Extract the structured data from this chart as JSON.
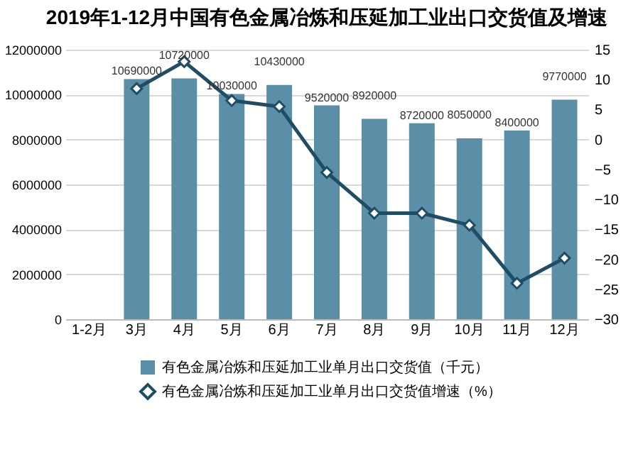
{
  "chart_data": {
    "type": "bar",
    "title": "2019年1-12月中国有色金属冶炼和压延加工业出口交货值及增速",
    "categories": [
      "1-2月",
      "3月",
      "4月",
      "5月",
      "6月",
      "7月",
      "8月",
      "9月",
      "10月",
      "11月",
      "12月"
    ],
    "series": [
      {
        "name": "有色金属冶炼和压延加工业单月出口交货值（千元）",
        "color": "#5b8fa8",
        "values": [
          null,
          10690000,
          10720000,
          10030000,
          10430000,
          9520000,
          8920000,
          8720000,
          8050000,
          8400000,
          9770000
        ],
        "value_labels": [
          null,
          "10690000",
          "10720000",
          "10030000",
          "10430000",
          "9520000",
          "8920000",
          "8720000",
          "8050000",
          "8400000",
          "9770000"
        ]
      },
      {
        "name": "有色金属冶炼和压延加工业单月出口交货值增速（%）",
        "type": "line",
        "axis": "y2",
        "color": "#1f4e64",
        "marker": "diamond",
        "values": [
          null,
          8.5,
          13,
          6.5,
          5.5,
          -5.5,
          -12.3,
          -12.3,
          -14.3,
          -24,
          -19.8
        ]
      }
    ],
    "ylim": [
      0,
      12000000
    ],
    "yticks": [
      0,
      2000000,
      4000000,
      6000000,
      8000000,
      10000000,
      12000000
    ],
    "y2lim": [
      -30,
      15
    ],
    "y2ticks": [
      -30,
      -25,
      -20,
      -15,
      -10,
      -5,
      0,
      5,
      10,
      15
    ],
    "grid": "y",
    "legend": "bottom"
  }
}
